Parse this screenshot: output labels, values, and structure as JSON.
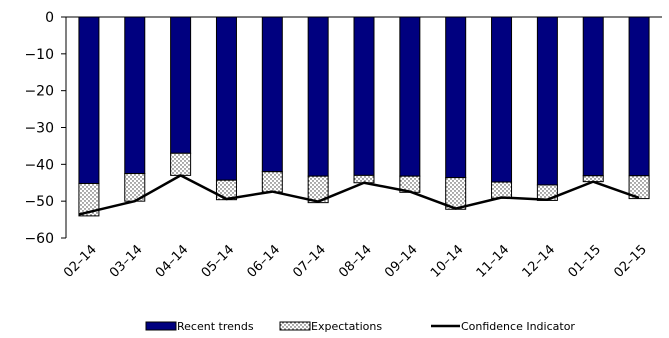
{
  "chart_data": {
    "type": "bar",
    "stacked": true,
    "categories": [
      "02–14",
      "03–14",
      "04–14",
      "05–14",
      "06–14",
      "07–14",
      "08–14",
      "09–14",
      "10–14",
      "11–14",
      "12–14",
      "01–15",
      "02–15"
    ],
    "series": [
      {
        "name": "Recent trends",
        "kind": "bar",
        "color": "#00007f",
        "pattern": "solid",
        "values": [
          -45.2,
          -42.5,
          -37.0,
          -44.3,
          -42.0,
          -43.2,
          -43.0,
          -43.2,
          -43.6,
          -44.8,
          -45.6,
          -43.1,
          -43.1
        ]
      },
      {
        "name": "Expectations",
        "kind": "bar",
        "color": "#ffffff",
        "pattern": "dotted",
        "values": [
          -8.8,
          -7.5,
          -6.0,
          -5.3,
          -5.5,
          -7.2,
          -2.0,
          -4.4,
          -8.6,
          -4.4,
          -4.2,
          -1.6,
          -6.2
        ]
      },
      {
        "name": "Confidence Indicator",
        "kind": "line",
        "color": "#000000",
        "values": [
          -53.6,
          -50.0,
          -43.0,
          -49.4,
          -47.4,
          -50.1,
          -45.0,
          -47.4,
          -52.0,
          -49.0,
          -49.6,
          -44.7,
          -49.1
        ]
      }
    ],
    "ylim": [
      -60,
      0
    ],
    "yticks": [
      0,
      -10,
      -20,
      -30,
      -40,
      -50,
      -60
    ],
    "legend": "bottom",
    "grid": false
  }
}
